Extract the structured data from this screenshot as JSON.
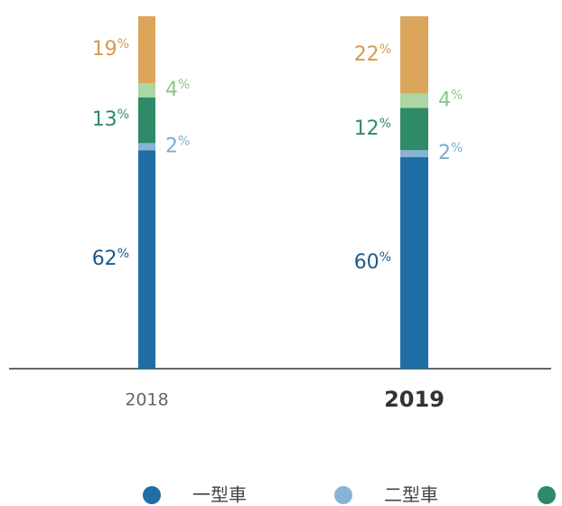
{
  "chart_data": {
    "type": "stacked_bar",
    "categories": [
      "2018",
      "2019"
    ],
    "unit": "%",
    "ylim": [
      0,
      100
    ],
    "series": [
      {
        "name": "一型車",
        "color": "#1f6fa5",
        "label_color": "#1d5a8e",
        "values": [
          62,
          60
        ]
      },
      {
        "name": "二型車",
        "color": "#86b3d6",
        "label_color": "#7aaed0",
        "values": [
          2,
          2
        ]
      },
      {
        "color": "#2f8a68",
        "label_color": "#2e8b6a",
        "values": [
          13,
          12
        ]
      },
      {
        "color": "#acd6a4",
        "label_color": "#8cc58a",
        "values": [
          4,
          4
        ]
      },
      {
        "color": "#dba55c",
        "label_color": "#d49a4c",
        "values": [
          19,
          22
        ]
      }
    ]
  }
}
